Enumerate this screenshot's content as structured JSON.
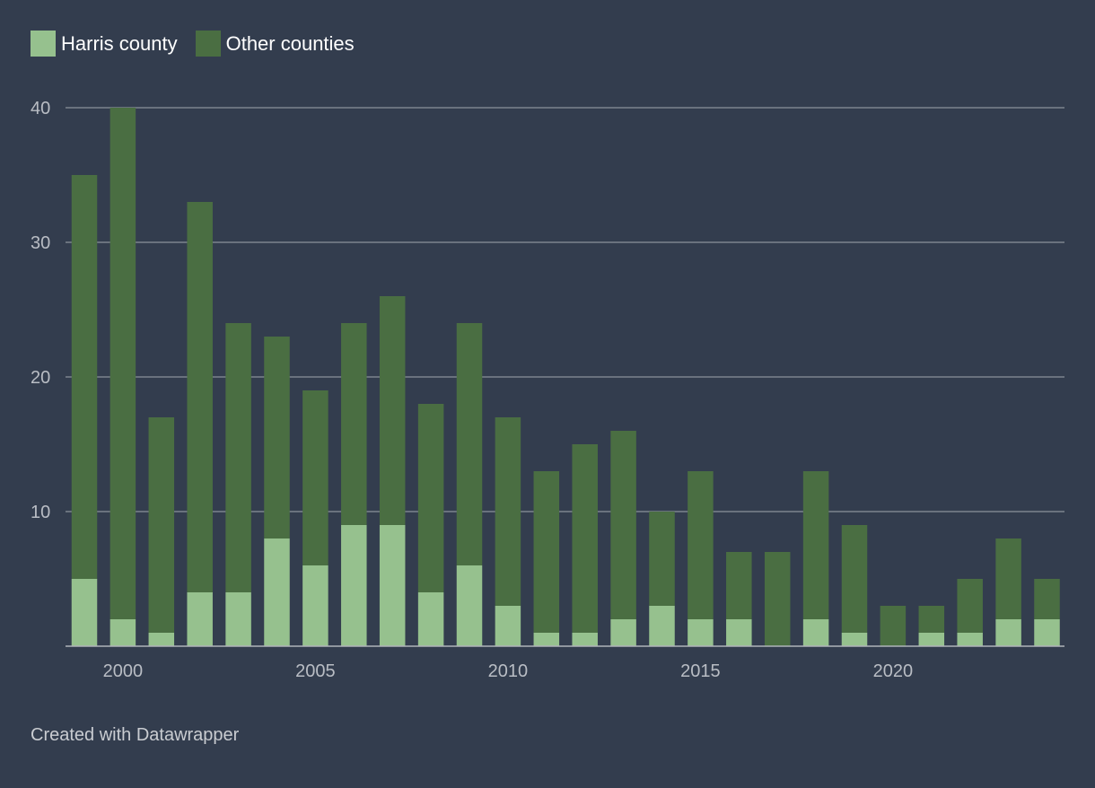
{
  "legend": [
    {
      "name": "Harris county",
      "color": "#96c18e"
    },
    {
      "name": "Other counties",
      "color": "#4a6e42"
    }
  ],
  "footer": "Created with Datawrapper",
  "colors": {
    "background": "#333d4e",
    "grid": "#8c929c",
    "axis_text": "#b9bdc4"
  },
  "chart_data": {
    "type": "bar",
    "stacked": true,
    "title": "",
    "xlabel": "",
    "ylabel": "",
    "ylim": [
      0,
      40
    ],
    "y_ticks": [
      10,
      20,
      30,
      40
    ],
    "x_tick_labels": [
      "2000",
      "2005",
      "2010",
      "2015",
      "2020"
    ],
    "categories": [
      1999,
      2000,
      2001,
      2002,
      2003,
      2004,
      2005,
      2006,
      2007,
      2008,
      2009,
      2010,
      2011,
      2012,
      2013,
      2014,
      2015,
      2016,
      2017,
      2018,
      2019,
      2020,
      2021,
      2022,
      2023,
      2024
    ],
    "series": [
      {
        "name": "Harris county",
        "values": [
          5,
          2,
          1,
          4,
          4,
          8,
          6,
          9,
          9,
          4,
          6,
          3,
          1,
          1,
          2,
          3,
          2,
          2,
          0,
          2,
          1,
          0,
          1,
          1,
          2,
          2
        ]
      },
      {
        "name": "Other counties",
        "values": [
          30,
          38,
          16,
          29,
          20,
          15,
          13,
          15,
          17,
          14,
          18,
          14,
          12,
          14,
          14,
          7,
          11,
          5,
          7,
          11,
          8,
          3,
          2,
          4,
          6,
          3
        ]
      }
    ],
    "legend_position": "top-left",
    "grid": true
  }
}
